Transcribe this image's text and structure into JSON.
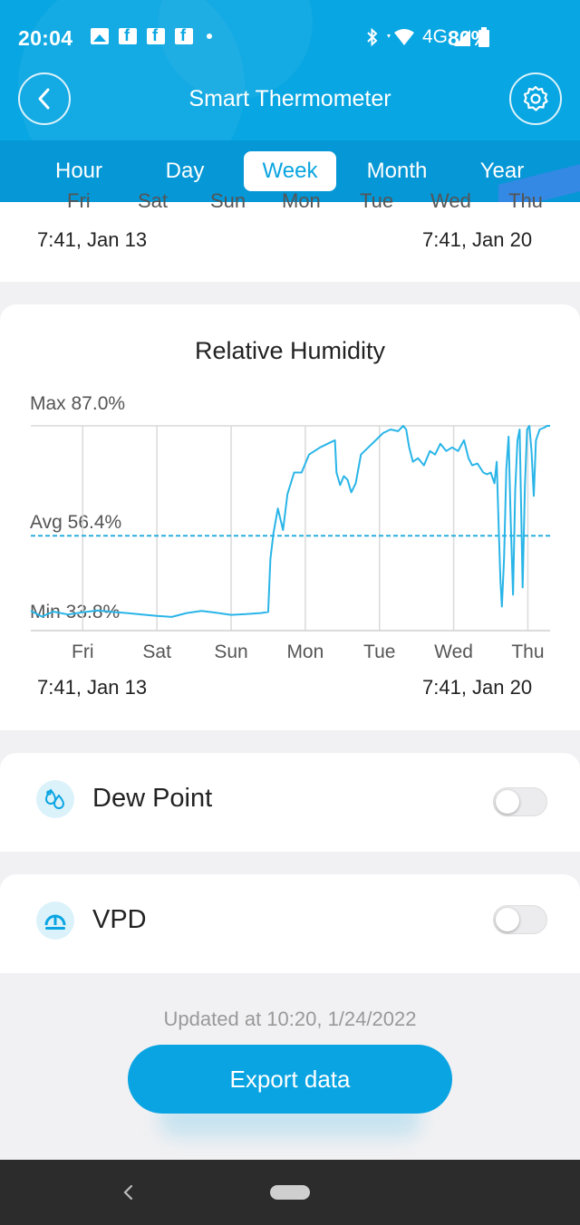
{
  "status_bar": {
    "time": "20:04",
    "network": "4G",
    "battery": "80%",
    "notification_icons": [
      "image-icon",
      "facebook-icon",
      "facebook-icon",
      "facebook-icon"
    ]
  },
  "nav": {
    "title": "Smart Thermometer"
  },
  "tabs": [
    {
      "label": "Hour",
      "active": false
    },
    {
      "label": "Day",
      "active": false
    },
    {
      "label": "Week",
      "active": true
    },
    {
      "label": "Month",
      "active": false
    },
    {
      "label": "Year",
      "active": false
    }
  ],
  "top_card": {
    "days": [
      "Fri",
      "Sat",
      "Sun",
      "Mon",
      "Tue",
      "Wed",
      "Thu"
    ],
    "start_label": "7:41,  Jan 13",
    "end_label": "7:41,  Jan 20"
  },
  "humidity_card": {
    "title": "Relative Humidity",
    "max_label": "Max 87.0%",
    "avg_label": "Avg 56.4%",
    "min_label": "Min 33.8%",
    "start_label": "7:41,  Jan 13",
    "end_label": "7:41,  Jan 20"
  },
  "chart_data": {
    "type": "line",
    "title": "Relative Humidity",
    "x_unit": "days",
    "x_ticks": [
      "Fri",
      "Sat",
      "Sun",
      "Mon",
      "Tue",
      "Wed",
      "Thu"
    ],
    "ylim": [
      30,
      87
    ],
    "max": 87.0,
    "avg": 56.4,
    "min": 33.8,
    "grid": true,
    "series": [
      {
        "color": "#29b5e8",
        "points": [
          [
            0.0,
            35.5
          ],
          [
            0.15,
            33.9
          ],
          [
            0.3,
            35.3
          ],
          [
            0.5,
            34.5
          ],
          [
            0.7,
            35.1
          ],
          [
            0.9,
            35.6
          ],
          [
            1.1,
            35.2
          ],
          [
            1.3,
            34.9
          ],
          [
            1.5,
            34.5
          ],
          [
            1.7,
            34.1
          ],
          [
            1.9,
            33.8
          ],
          [
            2.1,
            34.9
          ],
          [
            2.3,
            35.5
          ],
          [
            2.5,
            35.0
          ],
          [
            2.7,
            34.4
          ],
          [
            2.9,
            34.6
          ],
          [
            3.1,
            34.9
          ],
          [
            3.2,
            35.2
          ],
          [
            3.23,
            50
          ],
          [
            3.27,
            57
          ],
          [
            3.33,
            64
          ],
          [
            3.4,
            58
          ],
          [
            3.46,
            68
          ],
          [
            3.55,
            74
          ],
          [
            3.65,
            74
          ],
          [
            3.75,
            79
          ],
          [
            3.9,
            81
          ],
          [
            4.05,
            82.5
          ],
          [
            4.1,
            83
          ],
          [
            4.12,
            74
          ],
          [
            4.17,
            70.5
          ],
          [
            4.22,
            73
          ],
          [
            4.27,
            72
          ],
          [
            4.32,
            68.5
          ],
          [
            4.38,
            71
          ],
          [
            4.45,
            79
          ],
          [
            4.55,
            81
          ],
          [
            4.65,
            83
          ],
          [
            4.75,
            85
          ],
          [
            4.85,
            86
          ],
          [
            4.95,
            85.5
          ],
          [
            5.02,
            87
          ],
          [
            5.06,
            86
          ],
          [
            5.1,
            81
          ],
          [
            5.15,
            77
          ],
          [
            5.22,
            78
          ],
          [
            5.3,
            76
          ],
          [
            5.38,
            80
          ],
          [
            5.45,
            79
          ],
          [
            5.52,
            82
          ],
          [
            5.6,
            80
          ],
          [
            5.68,
            81
          ],
          [
            5.76,
            80
          ],
          [
            5.84,
            83
          ],
          [
            5.9,
            78
          ],
          [
            5.95,
            76
          ],
          [
            6.02,
            76.5
          ],
          [
            6.1,
            74
          ],
          [
            6.15,
            73.5
          ],
          [
            6.2,
            74
          ],
          [
            6.25,
            71
          ],
          [
            6.28,
            77
          ],
          [
            6.31,
            57
          ],
          [
            6.33,
            44
          ],
          [
            6.35,
            36.7
          ],
          [
            6.38,
            50
          ],
          [
            6.41,
            75
          ],
          [
            6.44,
            84
          ],
          [
            6.47,
            60
          ],
          [
            6.5,
            40
          ],
          [
            6.53,
            69
          ],
          [
            6.56,
            83
          ],
          [
            6.59,
            86
          ],
          [
            6.63,
            42
          ],
          [
            6.66,
            70
          ],
          [
            6.69,
            86
          ],
          [
            6.72,
            87
          ],
          [
            6.75,
            80
          ],
          [
            6.78,
            67.5
          ],
          [
            6.81,
            83
          ],
          [
            6.86,
            86
          ],
          [
            6.92,
            86.5
          ],
          [
            6.96,
            87
          ],
          [
            7.0,
            87
          ]
        ]
      }
    ]
  },
  "rows": [
    {
      "label": "Dew Point",
      "icon": "dew-point-icon",
      "enabled": false
    },
    {
      "label": "VPD",
      "icon": "vpd-icon",
      "enabled": false
    }
  ],
  "footer": {
    "updated": "Updated at 10:20,  1/24/2022",
    "export_label": "Export data"
  },
  "colors": {
    "header": "#08a6e2",
    "tab_band": "#0597d6",
    "accent": "#0aa4e2",
    "line": "#29b5e8",
    "avg_line": "#1fa9dc"
  }
}
